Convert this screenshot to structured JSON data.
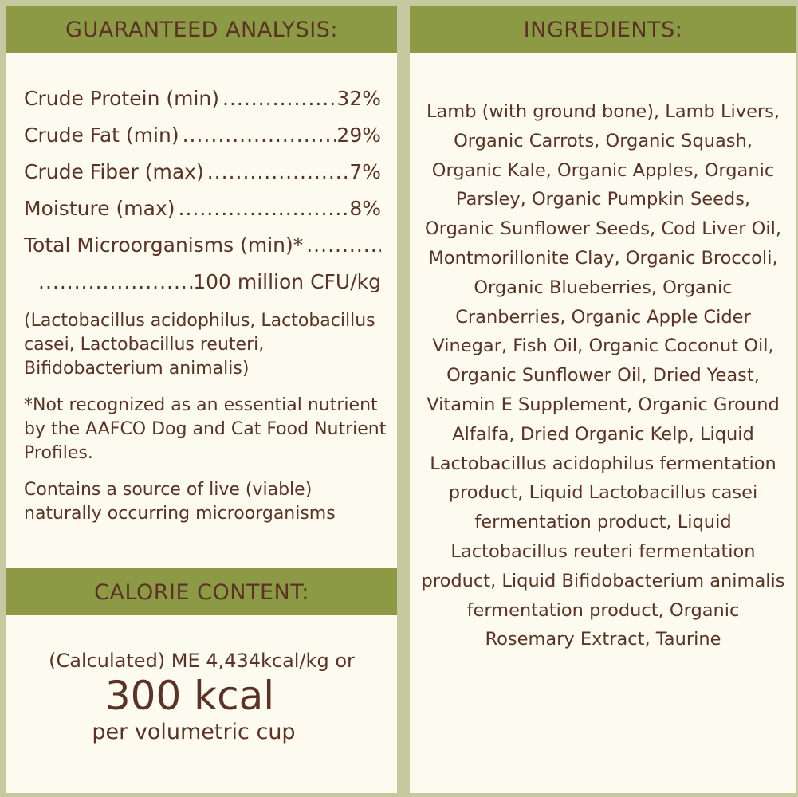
{
  "guaranteed_analysis": {
    "title": "GUARANTEED ANALYSIS:",
    "rows": [
      {
        "label": "Crude Protein (min)",
        "value": "32%"
      },
      {
        "label": "Crude Fat (min)",
        "value": "29%"
      },
      {
        "label": "Crude Fiber (max)",
        "value": "7%"
      },
      {
        "label": "Moisture (max)",
        "value": "8%"
      },
      {
        "label": "Total Microorganisms (min)*",
        "value": ""
      },
      {
        "label": "",
        "value": "100 million CFU/kg"
      }
    ],
    "strains": "(Lactobacillus acidophilus, Lactobacillus casei, Lactobacillus reuteri, Bifidobacterium animalis)",
    "footnote": "*Not recognized as an essential nutrient by the AAFCO Dog and Cat Food Nutrient Profiles.",
    "live_note": "Contains a source of live (viable) naturally occurring microorganisms"
  },
  "calorie_content": {
    "title": "CALORIE CONTENT:",
    "calculated": "(Calculated) ME 4,434kcal/kg or",
    "big": "300 kcal",
    "per": "per volumetric cup"
  },
  "ingredients": {
    "title": "INGREDIENTS:",
    "text": "Lamb (with ground bone), Lamb Livers, Organic Carrots, Organic Squash, Organic Kale, Organic Apples, Organic Parsley, Organic Pumpkin Seeds, Organic Sunflower Seeds, Cod Liver Oil, Montmorillonite Clay, Organic Broccoli, Organic Blueberries, Organic Cranberries, Organic Apple Cider Vinegar, Fish Oil, Organic Coconut Oil, Organic Sunflower Oil, Dried Yeast, Vitamin E Supplement, Organic Ground Alfalfa, Dried Organic Kelp, Liquid Lactobacillus acidophilus fermentation product, Liquid Lactobacillus casei fermentation product, Liquid Lactobacillus reuteri fermentation product, Liquid Bifidobacterium animalis fermentation product, Organic Rosemary Extract, Taurine"
  },
  "colors": {
    "header": "#8d9a45",
    "text": "#5a3326",
    "panel": "#fdfaf0",
    "border": "#c4c99f"
  }
}
